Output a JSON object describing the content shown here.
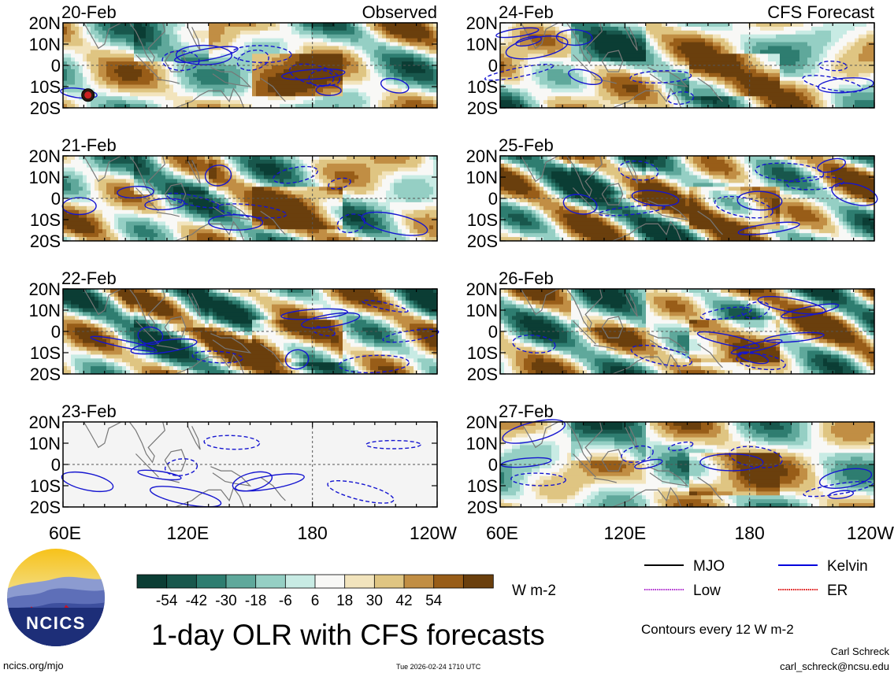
{
  "chart_data": {
    "type": "heatmap",
    "title": "1-day OLR with CFS forecasts",
    "variable": "OLR anomaly",
    "units": "W m-2",
    "contour_note": "Contours every 12 W m-2",
    "columns": [
      {
        "heading": "Observed",
        "panels": [
          "20-Feb",
          "21-Feb",
          "22-Feb",
          "23-Feb"
        ]
      },
      {
        "heading": "CFS Forecast",
        "panels": [
          "24-Feb",
          "25-Feb",
          "26-Feb",
          "27-Feb"
        ]
      }
    ],
    "lat_range": [
      -20,
      20
    ],
    "lon_range": [
      60,
      240
    ],
    "y_ticks": [
      "20N",
      "10N",
      "0",
      "10S",
      "20S"
    ],
    "x_ticks": [
      "60E",
      "120E",
      "180",
      "120W"
    ],
    "colorbar": {
      "ticks": [
        "-54",
        "-42",
        "-30",
        "-18",
        "-6",
        "6",
        "18",
        "30",
        "42",
        "54"
      ],
      "colors": [
        "#0b3d34",
        "#18574c",
        "#2e7d70",
        "#5fa89b",
        "#95cfc4",
        "#c8ebe4",
        "#f8f8f6",
        "#f2e4bd",
        "#dfc582",
        "#c18e44",
        "#985d18",
        "#6a3f0d"
      ]
    },
    "legend": [
      {
        "label": "MJO",
        "color": "#000000"
      },
      {
        "label": "Kelvin",
        "color": "#0000dd"
      },
      {
        "label": "Low",
        "color": "#aa22cc"
      },
      {
        "label": "ER",
        "color": "#dd0000"
      }
    ],
    "missing_panel": "23-Feb"
  },
  "logo": {
    "text": "NCICS"
  },
  "footer": {
    "site": "ncics.org/mjo",
    "timestamp": "Tue 2026-02-24 1710 UTC",
    "author": "Carl Schreck",
    "email": "carl_schreck@ncsu.edu"
  }
}
